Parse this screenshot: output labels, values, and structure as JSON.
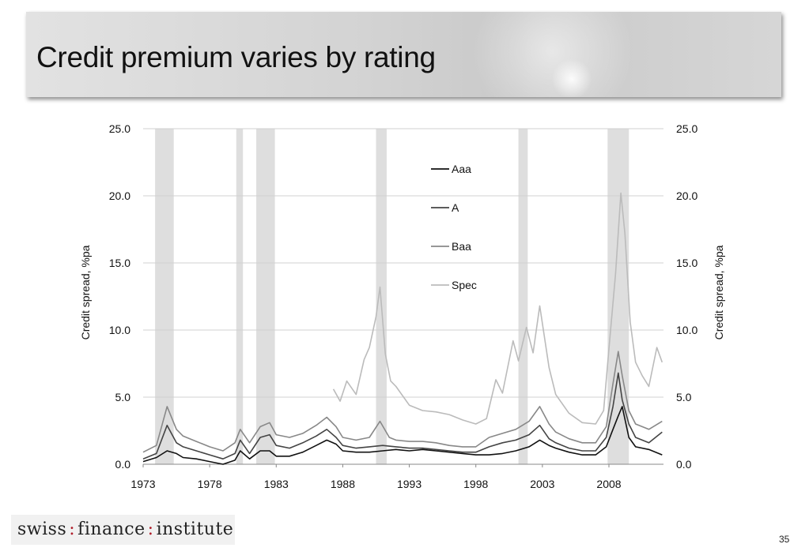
{
  "slide": {
    "title": "Credit premium varies by rating",
    "page_number": "35",
    "logo": {
      "part1": "swiss",
      "part2": "finance",
      "part3": "institute",
      "separator": ":"
    }
  },
  "chart_data": {
    "type": "line",
    "xlabel": "",
    "ylabel_left": "Credit spread, %pa",
    "ylabel_right": "Credit spread, %pa",
    "xlim": [
      1973,
      2012.1
    ],
    "ylim": [
      0,
      25
    ],
    "xticks": [
      "1973",
      "1978",
      "1983",
      "1988",
      "1993",
      "1998",
      "2003",
      "2008"
    ],
    "yticks_left": [
      "25.0",
      "20.0",
      "15.0",
      "10.0",
      "5.0",
      "0.0"
    ],
    "yticks_right": [
      "25.0",
      "20.0",
      "15.0",
      "10.0",
      "5.0",
      "0.0"
    ],
    "grid": "horizontal",
    "legend_position": "top-center",
    "recession_shading": [
      [
        1973.9,
        1975.3
      ],
      [
        1980.0,
        1980.5
      ],
      [
        1981.5,
        1982.9
      ],
      [
        1990.5,
        1991.3
      ],
      [
        2001.2,
        2001.9
      ],
      [
        2007.9,
        2009.5
      ]
    ],
    "colors": {
      "Aaa": "#111111",
      "A": "#444444",
      "Baa": "#888888",
      "Spec": "#bbbbbb",
      "recession": "#dedede",
      "grid": "#d0d0d0"
    },
    "series": [
      {
        "name": "Aaa",
        "x": [
          1973,
          1974,
          1974.8,
          1975.5,
          1976,
          1977,
          1978,
          1979,
          1979.9,
          1980.3,
          1981,
          1981.8,
          1982.5,
          1983,
          1984,
          1985,
          1986,
          1986.8,
          1987.5,
          1988,
          1989,
          1990,
          1991,
          1992,
          1993,
          1994,
          1995,
          1996,
          1997,
          1998,
          1999,
          2000,
          2001,
          2002,
          2002.8,
          2003.5,
          2004,
          2005,
          2006,
          2007,
          2007.8,
          2008.3,
          2008.7,
          2009,
          2009.5,
          2010,
          2011,
          2012
        ],
        "y": [
          0.2,
          0.5,
          1.0,
          0.8,
          0.5,
          0.4,
          0.2,
          0.0,
          0.3,
          1.0,
          0.4,
          1.0,
          1.0,
          0.6,
          0.6,
          0.9,
          1.4,
          1.8,
          1.5,
          1.0,
          0.9,
          0.9,
          1.0,
          1.1,
          1.0,
          1.1,
          1.0,
          0.9,
          0.8,
          0.7,
          0.7,
          0.8,
          1.0,
          1.3,
          1.8,
          1.4,
          1.2,
          0.9,
          0.7,
          0.7,
          1.3,
          2.6,
          3.6,
          4.3,
          2.0,
          1.3,
          1.1,
          0.7
        ]
      },
      {
        "name": "A",
        "x": [
          1973,
          1974,
          1974.8,
          1975.5,
          1976,
          1977,
          1978,
          1979,
          1979.9,
          1980.3,
          1981,
          1981.8,
          1982.5,
          1983,
          1984,
          1985,
          1986,
          1986.8,
          1987.5,
          1988,
          1989,
          1990,
          1991,
          1992,
          1993,
          1994,
          1995,
          1996,
          1997,
          1998,
          1999,
          2000,
          2001,
          2002,
          2002.8,
          2003.5,
          2004,
          2005,
          2006,
          2007,
          2007.8,
          2008.3,
          2008.7,
          2009,
          2009.5,
          2010,
          2011,
          2012
        ],
        "y": [
          0.4,
          0.8,
          2.9,
          1.6,
          1.3,
          1.0,
          0.7,
          0.4,
          0.8,
          1.8,
          0.8,
          2.0,
          2.2,
          1.4,
          1.2,
          1.6,
          2.1,
          2.6,
          2.0,
          1.4,
          1.2,
          1.3,
          1.4,
          1.3,
          1.2,
          1.2,
          1.1,
          1.0,
          0.9,
          0.9,
          1.3,
          1.6,
          1.8,
          2.2,
          2.9,
          1.9,
          1.6,
          1.2,
          1.0,
          1.0,
          2.0,
          4.3,
          6.8,
          4.8,
          3.0,
          2.0,
          1.6,
          2.4
        ]
      },
      {
        "name": "Baa",
        "x": [
          1973,
          1974,
          1974.8,
          1975.5,
          1976,
          1977,
          1978,
          1979,
          1979.9,
          1980.3,
          1981,
          1981.8,
          1982.5,
          1983,
          1984,
          1985,
          1986,
          1986.8,
          1987.5,
          1988,
          1989,
          1990,
          1990.8,
          1991.5,
          1992,
          1993,
          1994,
          1995,
          1996,
          1997,
          1998,
          1999,
          2000,
          2001,
          2002,
          2002.8,
          2003.5,
          2004,
          2005,
          2006,
          2007,
          2007.8,
          2008.3,
          2008.7,
          2009,
          2009.5,
          2010,
          2011,
          2012
        ],
        "y": [
          0.9,
          1.4,
          4.3,
          2.6,
          2.1,
          1.7,
          1.3,
          1.0,
          1.6,
          2.6,
          1.6,
          2.8,
          3.1,
          2.2,
          2.0,
          2.3,
          2.9,
          3.5,
          2.8,
          2.0,
          1.8,
          2.0,
          3.2,
          2.0,
          1.8,
          1.7,
          1.7,
          1.6,
          1.4,
          1.3,
          1.3,
          2.0,
          2.3,
          2.6,
          3.2,
          4.3,
          3.0,
          2.4,
          1.9,
          1.6,
          1.6,
          2.8,
          6.0,
          8.4,
          6.6,
          4.0,
          3.0,
          2.6,
          3.2
        ]
      },
      {
        "name": "Spec",
        "x": [
          1987.3,
          1987.8,
          1988.3,
          1989,
          1989.6,
          1990,
          1990.5,
          1990.8,
          1991.2,
          1991.6,
          1992,
          1993,
          1994,
          1995,
          1996,
          1997,
          1998,
          1998.8,
          1999.5,
          2000,
          2000.8,
          2001.2,
          2001.8,
          2002.3,
          2002.8,
          2003.5,
          2004,
          2005,
          2006,
          2007,
          2007.6,
          2008,
          2008.5,
          2008.9,
          2009.2,
          2009.6,
          2010,
          2010.5,
          2011,
          2011.6,
          2012
        ],
        "y": [
          5.6,
          4.7,
          6.2,
          5.2,
          7.8,
          8.7,
          11.0,
          13.2,
          8.2,
          6.2,
          5.8,
          4.4,
          4.0,
          3.9,
          3.7,
          3.3,
          3.0,
          3.4,
          6.3,
          5.3,
          9.2,
          7.7,
          10.2,
          8.3,
          11.8,
          7.2,
          5.2,
          3.8,
          3.1,
          3.0,
          4.0,
          8.6,
          14.2,
          20.2,
          17.2,
          10.6,
          7.6,
          6.6,
          5.8,
          8.7,
          7.6
        ]
      }
    ]
  }
}
